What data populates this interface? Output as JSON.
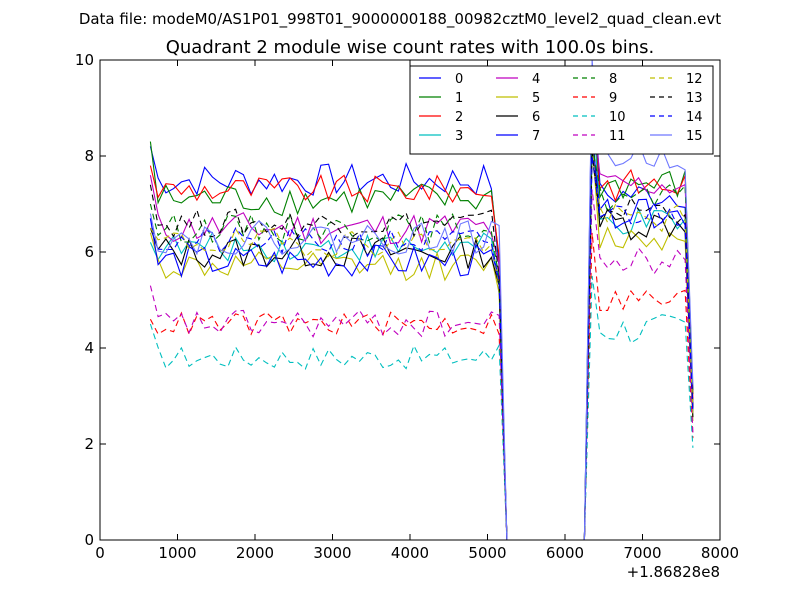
{
  "figure": {
    "suptitle": "Data file: modeM0/AS1P01_998T01_9000000188_00982cztM0_level2_quad_clean.evt"
  },
  "chart_data": {
    "type": "line",
    "title": "Quadrant 2 module wise count rates with 100.0s bins.",
    "xlabel": "",
    "ylabel": "",
    "x_offset_label": "+1.86828e8",
    "xlim": [
      0,
      8000
    ],
    "ylim": [
      0,
      10
    ],
    "x_ticks": [
      0,
      1000,
      2000,
      3000,
      4000,
      5000,
      6000,
      7000,
      8000
    ],
    "y_ticks": [
      0,
      2,
      4,
      6,
      8,
      10
    ],
    "legend_position": "top-right",
    "legend_columns": 4,
    "x": [
      650,
      750,
      850,
      950,
      1050,
      1150,
      1250,
      1350,
      1450,
      1550,
      1650,
      1750,
      1850,
      1950,
      2050,
      2150,
      2250,
      2350,
      2450,
      2550,
      2650,
      2750,
      2850,
      2950,
      3050,
      3150,
      3250,
      3350,
      3450,
      3550,
      3650,
      3750,
      3850,
      3950,
      4050,
      4150,
      4250,
      4350,
      4450,
      4550,
      4650,
      4750,
      4850,
      4950,
      5050,
      5150,
      5250,
      5350,
      5450,
      5550,
      5650,
      5750,
      5850,
      5950,
      6050,
      6150,
      6250,
      6350,
      6450,
      6550,
      6650,
      6750,
      6850,
      6950,
      7050,
      7150,
      7250,
      7350,
      7450,
      7550,
      7650
    ],
    "gap": {
      "start_index": 46,
      "end_index": 56
    },
    "series": [
      {
        "name": "0",
        "color": "#0000ff",
        "dash": "solid",
        "first": [
          8.2,
          9.8,
          7.3,
          7.8
        ],
        "mean_a": 7.5,
        "noise_a": 0.35,
        "mean_b": 7.2,
        "noise_b": 0.3
      },
      {
        "name": "1",
        "color": "#008000",
        "dash": "solid",
        "first": [
          8.3,
          9.5,
          7.5,
          7.6
        ],
        "mean_a": 7.1,
        "noise_a": 0.35,
        "mean_b": 7.4,
        "noise_b": 0.35
      },
      {
        "name": "2",
        "color": "#ff0000",
        "dash": "solid",
        "first": [
          7.8,
          8.8,
          7.6,
          7.3
        ],
        "mean_a": 7.3,
        "noise_a": 0.3,
        "mean_b": 7.4,
        "noise_b": 0.35
      },
      {
        "name": "3",
        "color": "#00bfbf",
        "dash": "solid",
        "first": [
          6.2,
          9.4,
          6.8,
          6.7
        ],
        "mean_a": 6.1,
        "noise_a": 0.3,
        "mean_b": 6.6,
        "noise_b": 0.3
      },
      {
        "name": "4",
        "color": "#bf00bf",
        "dash": "solid",
        "first": [
          7.6,
          9.0,
          7.4,
          7.0
        ],
        "mean_a": 6.5,
        "noise_a": 0.35,
        "mean_b": 7.4,
        "noise_b": 0.3
      },
      {
        "name": "5",
        "color": "#bfbf00",
        "dash": "solid",
        "first": [
          6.4,
          8.3,
          6.6,
          6.2
        ],
        "mean_a": 5.7,
        "noise_a": 0.3,
        "mean_b": 6.3,
        "noise_b": 0.3
      },
      {
        "name": "6",
        "color": "#000000",
        "dash": "solid",
        "first": [
          6.5,
          8.6,
          6.8,
          6.4
        ],
        "mean_a": 6.0,
        "noise_a": 0.35,
        "mean_b": 6.6,
        "noise_b": 0.35
      },
      {
        "name": "7",
        "color": "#0000ff",
        "dash": "solid",
        "first": [
          6.7,
          8.4,
          6.9,
          6.6
        ],
        "mean_a": 5.8,
        "noise_a": 0.35,
        "mean_b": 6.8,
        "noise_b": 0.3
      },
      {
        "name": "8",
        "color": "#008000",
        "dash": "dashed",
        "first": [
          7.0,
          8.2,
          7.0,
          6.9
        ],
        "mean_a": 6.5,
        "noise_a": 0.3,
        "mean_b": 7.1,
        "noise_b": 0.3
      },
      {
        "name": "9",
        "color": "#ff0000",
        "dash": "dashed",
        "first": [
          4.6,
          6.4,
          5.5,
          5.3
        ],
        "mean_a": 4.5,
        "noise_a": 0.25,
        "mean_b": 5.0,
        "noise_b": 0.3
      },
      {
        "name": "10",
        "color": "#00bfbf",
        "dash": "dashed",
        "first": [
          4.5,
          5.5,
          5.2,
          4.8
        ],
        "mean_a": 3.8,
        "noise_a": 0.25,
        "mean_b": 4.4,
        "noise_b": 0.35
      },
      {
        "name": "11",
        "color": "#bf00bf",
        "dash": "dashed",
        "first": [
          5.3,
          7.3,
          6.0,
          5.6
        ],
        "mean_a": 4.5,
        "noise_a": 0.3,
        "mean_b": 5.8,
        "noise_b": 0.3
      },
      {
        "name": "12",
        "color": "#bfbf00",
        "dash": "dashed",
        "first": [
          6.5,
          7.9,
          6.8,
          6.6
        ],
        "mean_a": 6.2,
        "noise_a": 0.3,
        "mean_b": 6.7,
        "noise_b": 0.3
      },
      {
        "name": "13",
        "color": "#000000",
        "dash": "dashed",
        "first": [
          7.4,
          8.1,
          7.0,
          6.9
        ],
        "mean_a": 6.6,
        "noise_a": 0.3,
        "mean_b": 6.9,
        "noise_b": 0.3
      },
      {
        "name": "14",
        "color": "#0000ff",
        "dash": "dashed",
        "first": [
          6.7,
          8.0,
          6.9,
          6.7
        ],
        "mean_a": 6.2,
        "noise_a": 0.3,
        "mean_b": 6.8,
        "noise_b": 0.3
      },
      {
        "name": "15",
        "color": "#6f78ff",
        "dash": "solid",
        "first": [
          6.8,
          10.0,
          8.4,
          8.1
        ],
        "mean_a": 6.3,
        "noise_a": 0.35,
        "mean_b": 8.0,
        "noise_b": 0.3
      }
    ]
  }
}
